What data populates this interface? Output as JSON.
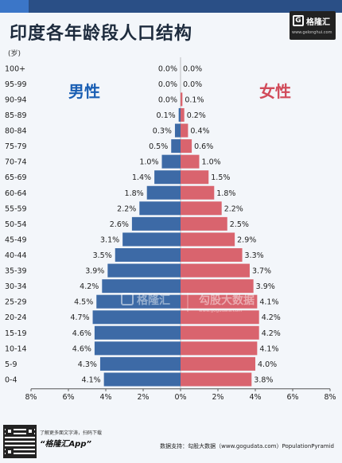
{
  "title": "印度各年龄段人口结构",
  "logo": {
    "mark": "G",
    "name": "格隆汇",
    "url": "www.gelonghui.com"
  },
  "watermark": {
    "left": "格隆汇",
    "right": "勾股大数据",
    "url": "www.gogudata.com"
  },
  "footer": {
    "tip": "了解更多面文字涛，扫码下载",
    "app": "“格隆汇App”",
    "source": "数据支持：勾股大数据（www.gogudata.com）PopulationPyramid"
  },
  "colors": {
    "male": "#3d6aa6",
    "female": "#d9646e",
    "male_text": "#1a5fb4",
    "female_text": "#d14b5a",
    "bg": "#f3f6fa"
  },
  "chart_data": {
    "type": "bar",
    "orientation": "horizontal-pyramid",
    "y_unit": "(岁)",
    "categories": [
      "100+",
      "95-99",
      "90-94",
      "85-89",
      "80-84",
      "75-79",
      "70-74",
      "65-69",
      "60-64",
      "55-59",
      "50-54",
      "45-49",
      "40-44",
      "35-39",
      "30-34",
      "25-29",
      "20-24",
      "15-19",
      "10-14",
      "5-9",
      "0-4"
    ],
    "series": [
      {
        "name": "男性",
        "side": "left",
        "values": [
          0.0,
          0.0,
          0.0,
          0.1,
          0.3,
          0.5,
          1.0,
          1.4,
          1.8,
          2.2,
          2.6,
          3.1,
          3.5,
          3.9,
          4.2,
          4.5,
          4.7,
          4.6,
          4.6,
          4.3,
          4.1
        ],
        "labels": [
          "0.0%",
          "0.0%",
          "0.0%",
          "0.1%",
          "0.3%",
          "0.5%",
          "1.0%",
          "1.4%",
          "1.8%",
          "2.2%",
          "2.6%",
          "3.1%",
          "3.5%",
          "3.9%",
          "4.2%",
          "4.5%",
          "4.7%",
          "4.6%",
          "4.6%",
          "4.3%",
          "4.1%"
        ]
      },
      {
        "name": "女性",
        "side": "right",
        "values": [
          0.0,
          0.0,
          0.1,
          0.2,
          0.4,
          0.6,
          1.0,
          1.5,
          1.8,
          2.2,
          2.5,
          2.9,
          3.3,
          3.7,
          3.9,
          4.1,
          4.2,
          4.2,
          4.1,
          4.0,
          3.8
        ],
        "labels": [
          "0.0%",
          "0.0%",
          "0.1%",
          "0.2%",
          "0.4%",
          "0.6%",
          "1.0%",
          "1.5%",
          "1.8%",
          "2.2%",
          "2.5%",
          "2.9%",
          "3.3%",
          "3.7%",
          "3.9%",
          "4.1%",
          "4.2%",
          "4.2%",
          "4.1%",
          "4.0%",
          "3.8%"
        ]
      }
    ],
    "xlim": [
      -8,
      8
    ],
    "x_ticks": [
      "8%",
      "6%",
      "4%",
      "2%",
      "0%",
      "2%",
      "4%",
      "6%",
      "8%"
    ],
    "legend": [
      "男性",
      "女性"
    ]
  }
}
